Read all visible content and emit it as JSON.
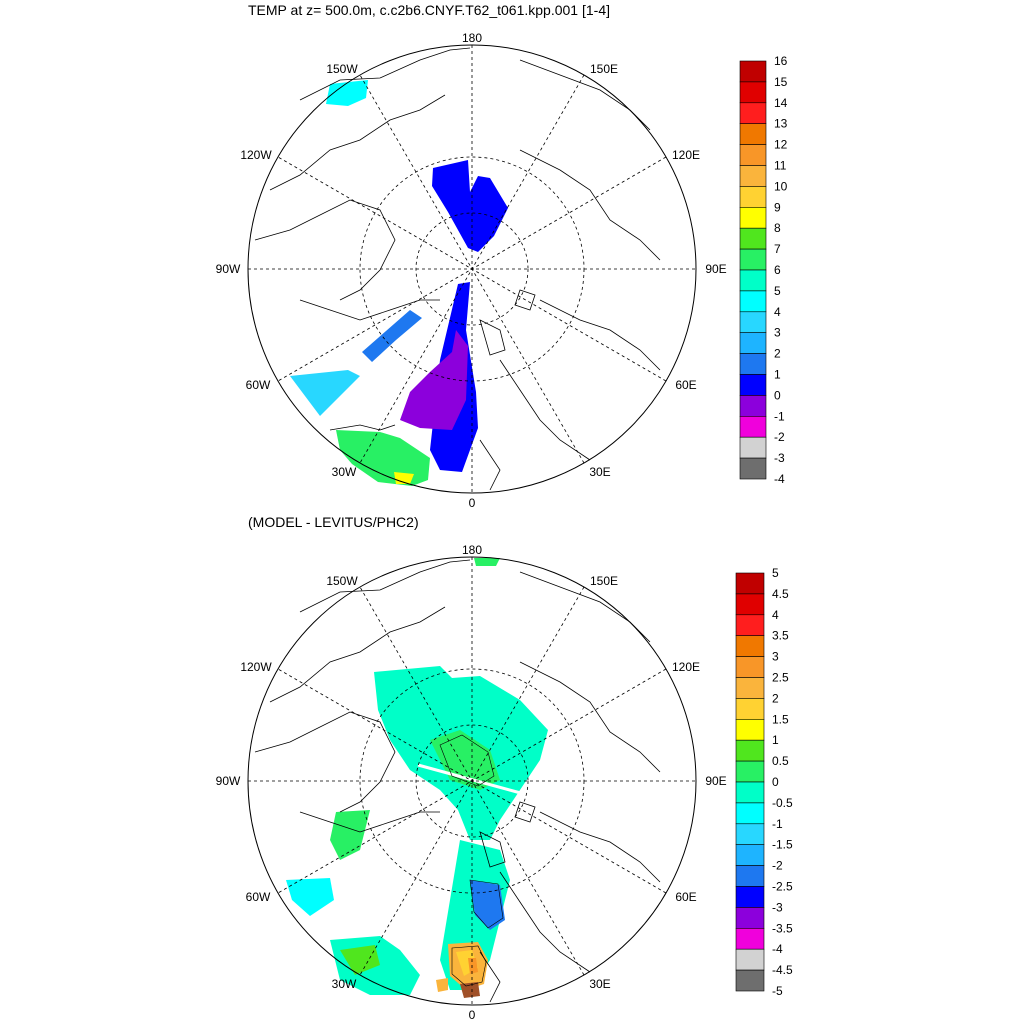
{
  "panels": [
    {
      "title": "TEMP at z= 500.0m, c.c2b6.CNYF.T62_t061.kpp.001 [1-4]",
      "colorbar_labels": [
        "16",
        "15",
        "14",
        "13",
        "12",
        "11",
        "10",
        "9",
        "8",
        "7",
        "6",
        "5",
        "4",
        "3",
        "2",
        "1",
        "0",
        "-1",
        "-2",
        "-3",
        "-4"
      ],
      "colorbar_colors": [
        "#c00000",
        "#e00000",
        "#ff1e1e",
        "#f07800",
        "#f89628",
        "#fab43c",
        "#ffd232",
        "#ffff00",
        "#50e61e",
        "#28f064",
        "#00ffc8",
        "#00ffff",
        "#28d7ff",
        "#1eb4ff",
        "#1e78f0",
        "#0000ff",
        "#8c00dc",
        "#f000dc",
        "#d2d2d2",
        "#6e6e6e"
      ]
    },
    {
      "title": "(MODEL - LEVITUS/PHC2)",
      "colorbar_labels": [
        "5",
        "4.5",
        "4",
        "3.5",
        "3",
        "2.5",
        "2",
        "1.5",
        "1",
        "0.5",
        "0",
        "-0.5",
        "-1",
        "-1.5",
        "-2",
        "-2.5",
        "-3",
        "-3.5",
        "-4",
        "-4.5",
        "-5"
      ],
      "colorbar_colors": [
        "#c00000",
        "#e00000",
        "#ff1e1e",
        "#f07800",
        "#f89628",
        "#fab43c",
        "#ffd232",
        "#ffff00",
        "#50e61e",
        "#28f064",
        "#00ffc8",
        "#00ffff",
        "#28d7ff",
        "#1eb4ff",
        "#1e78f0",
        "#0000ff",
        "#8c00dc",
        "#f000dc",
        "#d2d2d2",
        "#6e6e6e"
      ]
    }
  ],
  "longitude_labels": [
    {
      "label": "180",
      "angle": 0
    },
    {
      "label": "150E",
      "angle": 30
    },
    {
      "label": "120E",
      "angle": 60
    },
    {
      "label": "90E",
      "angle": 90
    },
    {
      "label": "60E",
      "angle": 120
    },
    {
      "label": "30E",
      "angle": 150
    },
    {
      "label": "0",
      "angle": 180
    },
    {
      "label": "30W",
      "angle": 210
    },
    {
      "label": "60W",
      "angle": 240
    },
    {
      "label": "90W",
      "angle": 270
    },
    {
      "label": "120W",
      "angle": 300
    },
    {
      "label": "150W",
      "angle": 330
    }
  ],
  "field_colors": {
    "deep_blue": "#0000ff",
    "purple": "#8c00dc",
    "light_blue": "#28d7ff",
    "mid_blue": "#1e78f0",
    "green": "#28f064",
    "yellow": "#ffff00",
    "aqua": "#00ffc8",
    "cyan": "#00ffff",
    "lime": "#50e61e",
    "orange": "#fab43c",
    "gold": "#ffd232",
    "brown": "#a05028"
  }
}
